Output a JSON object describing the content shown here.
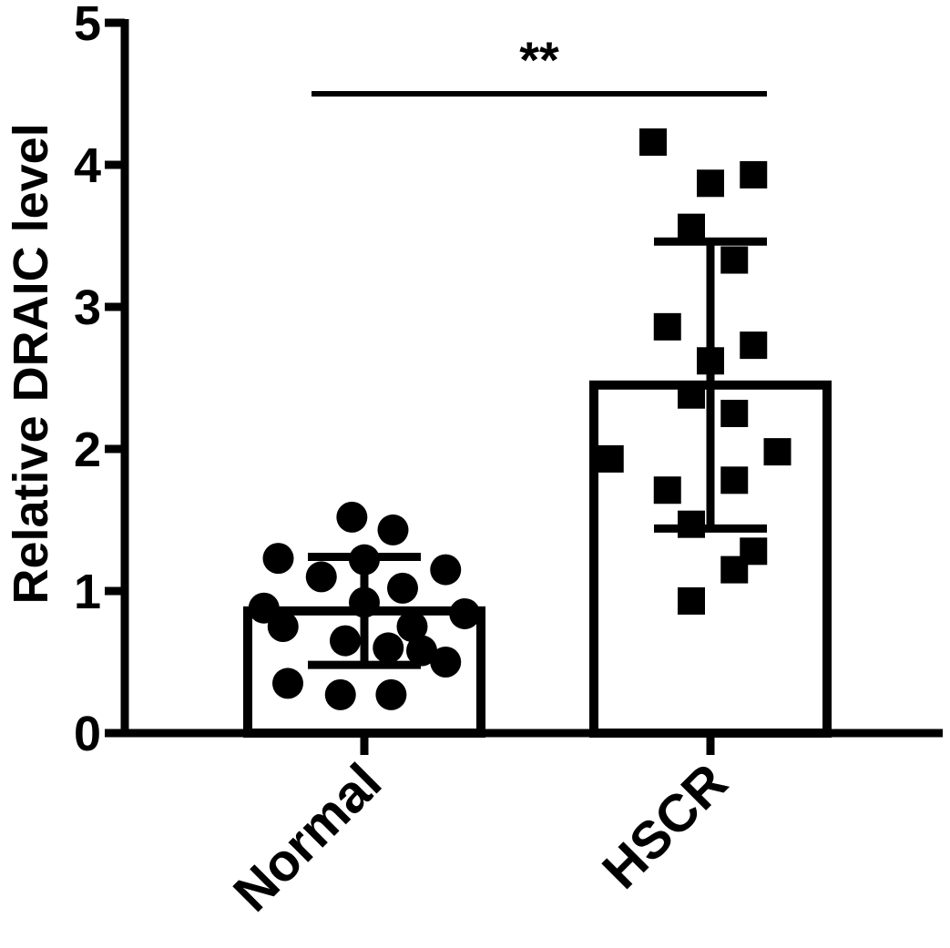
{
  "chart_data": {
    "type": "bar",
    "categories": [
      "Normal",
      "HSCR"
    ],
    "ylabel": "Relative DRAIC level",
    "xlabel": "",
    "ylim": [
      0,
      5
    ],
    "yticks": [
      "0",
      "1",
      "2",
      "3",
      "4",
      "5"
    ],
    "grid": false,
    "bars": [
      {
        "category": "Normal",
        "mean": 0.86,
        "sd": 0.38,
        "marker": "circle"
      },
      {
        "category": "HSCR",
        "mean": 2.45,
        "sd": 1.01,
        "marker": "square"
      }
    ],
    "points": {
      "Normal": [
        [
          -0.13,
          1.52
        ],
        [
          0.3,
          1.43
        ],
        [
          -0.9,
          1.23
        ],
        [
          0.0,
          1.22
        ],
        [
          0.85,
          1.15
        ],
        [
          -0.45,
          1.1
        ],
        [
          0.4,
          1.02
        ],
        [
          0.0,
          0.92
        ],
        [
          -1.05,
          0.88
        ],
        [
          1.05,
          0.84
        ],
        [
          -0.85,
          0.75
        ],
        [
          0.5,
          0.75
        ],
        [
          -0.2,
          0.65
        ],
        [
          0.6,
          0.58
        ],
        [
          0.25,
          0.6
        ],
        [
          0.85,
          0.5
        ],
        [
          -0.8,
          0.35
        ],
        [
          -0.25,
          0.27
        ],
        [
          0.28,
          0.27
        ]
      ],
      "HSCR": [
        [
          -0.6,
          4.16
        ],
        [
          0.45,
          3.93
        ],
        [
          0.0,
          3.87
        ],
        [
          -0.2,
          3.56
        ],
        [
          0.25,
          3.33
        ],
        [
          -0.45,
          2.86
        ],
        [
          0.45,
          2.73
        ],
        [
          0.0,
          2.62
        ],
        [
          -0.2,
          2.38
        ],
        [
          0.25,
          2.25
        ],
        [
          0.7,
          1.98
        ],
        [
          -1.05,
          1.93
        ],
        [
          0.25,
          1.78
        ],
        [
          -0.45,
          1.71
        ],
        [
          -0.2,
          1.47
        ],
        [
          0.45,
          1.28
        ],
        [
          0.25,
          1.15
        ],
        [
          -0.2,
          0.93
        ]
      ]
    },
    "significance": {
      "label": "**",
      "from": "Normal",
      "to": "HSCR",
      "y": 4.5
    }
  }
}
